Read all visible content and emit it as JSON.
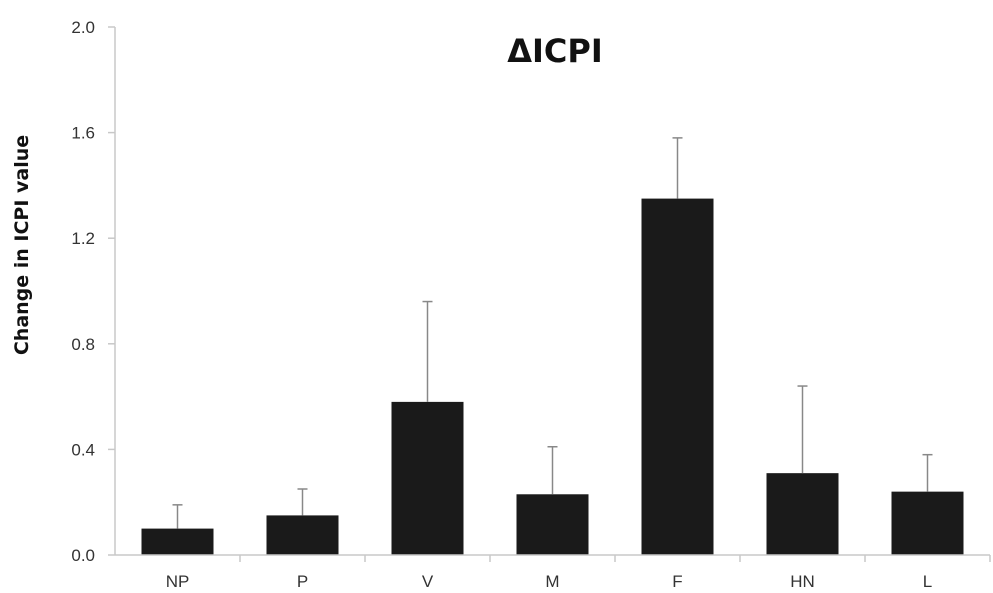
{
  "chart_data": {
    "type": "bar",
    "title": "ΔICPI",
    "xlabel": "",
    "ylabel": "Change in ICPI value",
    "categories": [
      "NP",
      "P",
      "V",
      "M",
      "F",
      "HN",
      "L"
    ],
    "values": [
      0.1,
      0.15,
      0.58,
      0.23,
      1.35,
      0.31,
      0.24
    ],
    "error_plus": [
      0.09,
      0.1,
      0.38,
      0.18,
      0.23,
      0.33,
      0.14
    ],
    "ylim": [
      0.0,
      2.0
    ],
    "yticks": [
      "0.0",
      "0.4",
      "0.8",
      "1.2",
      "1.6",
      "2.0"
    ],
    "grid": false,
    "legend": "none",
    "bar_color": "#1a1a1a",
    "axis_color": "#c8c8c8"
  }
}
